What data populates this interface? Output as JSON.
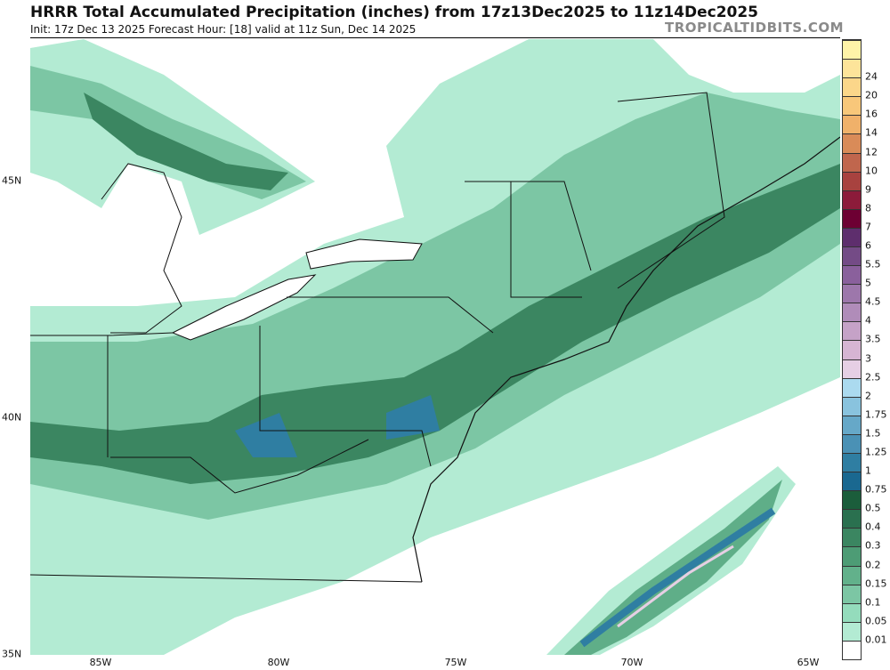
{
  "header": {
    "title": "HRRR Total Accumulated Precipitation (inches) from 17z13Dec2025 to 11z14Dec2025",
    "subtitle": "Init: 17z Dec 13 2025   Forecast Hour: [18]   valid at 11z Sun, Dec 14 2025",
    "brand": "TROPICALTIDBITS.COM"
  },
  "axes": {
    "longitude_labels": [
      "85W",
      "80W",
      "75W",
      "70W",
      "65W"
    ],
    "latitude_labels": [
      "45N",
      "40N",
      "35N"
    ]
  },
  "colorbar": {
    "unit": "inches",
    "levels": [
      "0.01",
      "0.05",
      "0.1",
      "0.15",
      "0.2",
      "0.3",
      "0.4",
      "0.5",
      "0.75",
      "1",
      "1.25",
      "1.5",
      "1.75",
      "2",
      "2.5",
      "3",
      "3.5",
      "4",
      "4.5",
      "5",
      "5.5",
      "6",
      "7",
      "8",
      "9",
      "10",
      "12",
      "14",
      "16",
      "20",
      "24"
    ],
    "colors": [
      "#ffffff",
      "#b3ebd3",
      "#94dcbc",
      "#7cc6a4",
      "#62b18b",
      "#4d9c75",
      "#3b8661",
      "#2a704f",
      "#1b5d3b",
      "#1a6890",
      "#2f7ea2",
      "#4a91b5",
      "#66a8c8",
      "#89c3de",
      "#abdaef",
      "#e6cfe4",
      "#d6b5d3",
      "#c5a2c7",
      "#b08cb9",
      "#9d77ab",
      "#8a609c",
      "#744b86",
      "#5e2e6d",
      "#6d0033",
      "#8c1b3a",
      "#a8423f",
      "#c0664d",
      "#d98b58",
      "#f0b16a",
      "#f8c77a",
      "#fbd68a",
      "#fde49a",
      "#fef3a8"
    ]
  }
}
